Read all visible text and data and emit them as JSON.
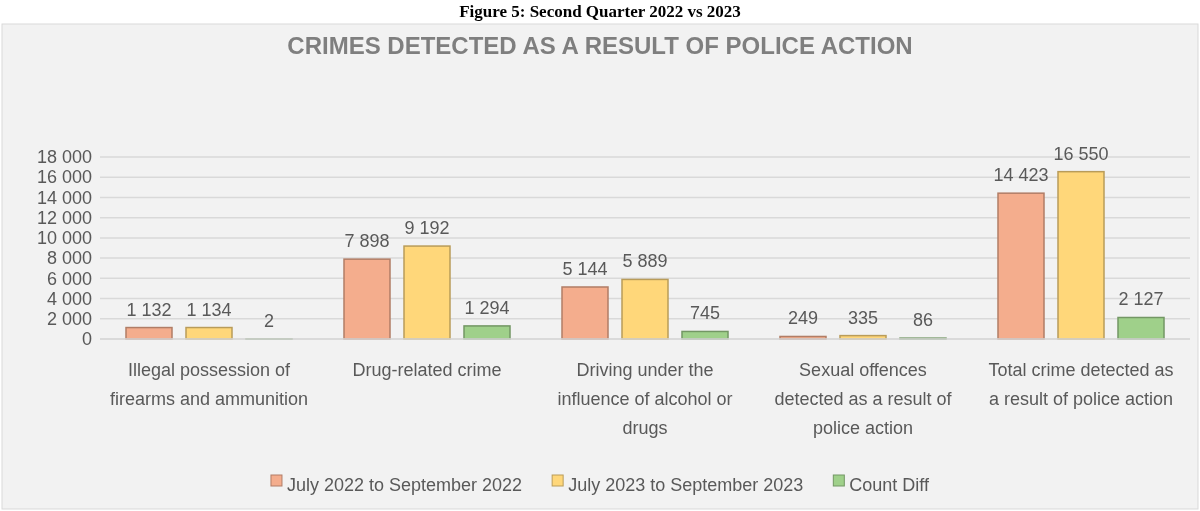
{
  "chart_data": {
    "type": "bar",
    "title": "CRIMES DETECTED AS A RESULT OF POLICE ACTION",
    "annotations": [
      "Figure 5: Second Quarter 2022 vs 2023"
    ],
    "categories": [
      "Illegal possession of firearms and ammunition",
      "Drug-related crime",
      "Driving under the influence of alcohol or drugs",
      "Sexual offences detected as a result of police action",
      "Total crime detected as a result of police action"
    ],
    "series": [
      {
        "name": "July 2022 to September 2022",
        "color": "#f4ad8d",
        "values": [
          1132,
          7898,
          5144,
          249,
          14423
        ],
        "value_labels": [
          "1 132",
          "7 898",
          "5 144",
          "249",
          "14 423"
        ]
      },
      {
        "name": "July 2023 to September 2023",
        "color": "#ffd77a",
        "values": [
          1134,
          9192,
          5889,
          335,
          16550
        ],
        "value_labels": [
          "1 134",
          "9 192",
          "5 889",
          "335",
          "16 550"
        ]
      },
      {
        "name": "Count Diff",
        "color": "#9fd08a",
        "values": [
          2,
          1294,
          745,
          86,
          2127
        ],
        "value_labels": [
          "2",
          "1 294",
          "745",
          "86",
          "2 127"
        ]
      }
    ],
    "ylim": [
      0,
      18000
    ],
    "yticks": [
      0,
      {
        "value": 2000,
        "label": "2 000"
      },
      {
        "value": 4000,
        "label": "4 000"
      },
      {
        "value": 6000,
        "label": "6 000"
      },
      {
        "value": 8000,
        "label": "8 000"
      },
      {
        "value": 10000,
        "label": "10 000"
      },
      {
        "value": 12000,
        "label": "12 000"
      },
      {
        "value": 14000,
        "label": "14 000"
      },
      {
        "value": 16000,
        "label": "16 000"
      },
      {
        "value": 18000,
        "label": "18 000"
      }
    ],
    "grid": "y",
    "legend": "bottom"
  }
}
